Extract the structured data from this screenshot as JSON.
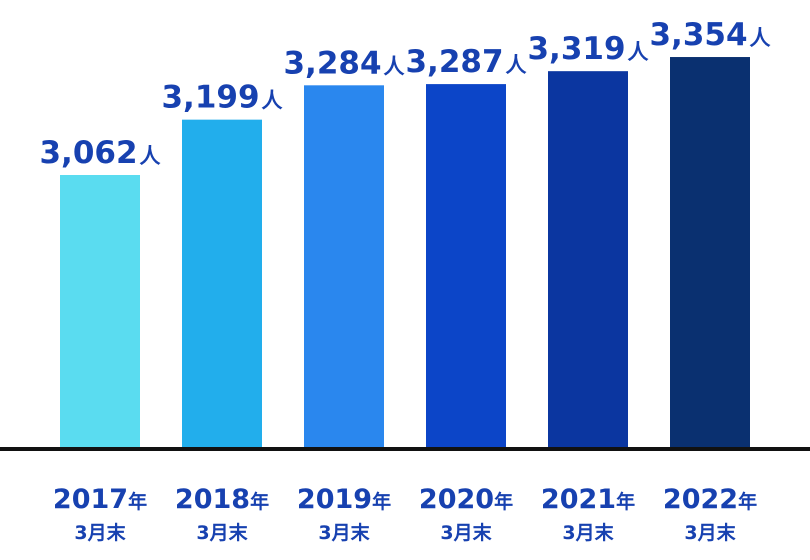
{
  "chart_data": {
    "type": "bar",
    "categories": [
      {
        "year": "2017",
        "year_suffix": "年",
        "sub": "3月末"
      },
      {
        "year": "2018",
        "year_suffix": "年",
        "sub": "3月末"
      },
      {
        "year": "2019",
        "year_suffix": "年",
        "sub": "3月末"
      },
      {
        "year": "2020",
        "year_suffix": "年",
        "sub": "3月末"
      },
      {
        "year": "2021",
        "year_suffix": "年",
        "sub": "3月末"
      },
      {
        "year": "2022",
        "year_suffix": "年",
        "sub": "3月末"
      }
    ],
    "values": [
      3062,
      3199,
      3284,
      3287,
      3319,
      3354
    ],
    "value_labels": [
      "3,062",
      "3,199",
      "3,284",
      "3,287",
      "3,319",
      "3,354"
    ],
    "unit": "人",
    "bar_colors": [
      "#5adcf0",
      "#22aeec",
      "#2a87ee",
      "#0c45c8",
      "#0b36a0",
      "#0a3070"
    ],
    "text_color": "#1741b0",
    "baseline_color": "#111111",
    "title": "",
    "xlabel": "",
    "ylabel": "",
    "grid": false,
    "legend": "none"
  }
}
